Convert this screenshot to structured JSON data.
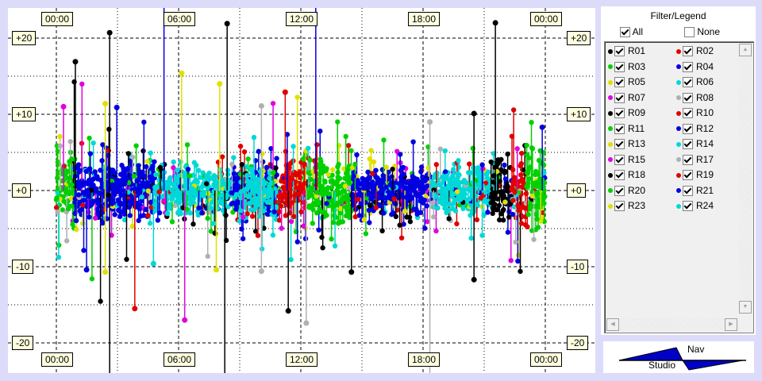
{
  "chart_data": {
    "type": "scatter",
    "subtype": "stem",
    "x_ticks": [
      "00:00",
      "06:00",
      "12:00",
      "18:00",
      "00:00"
    ],
    "y_ticks": [
      "+20",
      "+10",
      "+0",
      "-10",
      "-20"
    ],
    "xlim_hours": [
      0,
      24
    ],
    "ylim": [
      -25,
      25
    ],
    "grid": true,
    "legend_placement": "right",
    "series_colors": {
      "R01": "#000000",
      "R02": "#e00000",
      "R03": "#00d000",
      "R04": "#0000e0",
      "R05": "#e0e000",
      "R06": "#00d8d8",
      "R07": "#e000e0",
      "R08": "#b0b0b0",
      "R09": "#000000",
      "R10": "#e00000",
      "R11": "#00d000",
      "R12": "#0000e0",
      "R13": "#e0e000",
      "R14": "#00d8d8",
      "R15": "#e000e0",
      "R17": "#b0b0b0",
      "R18": "#000000",
      "R19": "#e00000",
      "R20": "#00d000",
      "R21": "#0000e0",
      "R23": "#e0e000",
      "R24": "#00d8d8"
    },
    "dense_segments": [
      {
        "series": "R03",
        "start": "00:00",
        "end": "00:55",
        "spread": 4
      },
      {
        "series": "R04",
        "start": "00:55",
        "end": "04:50",
        "spread": 3
      },
      {
        "series": "R06",
        "start": "04:50",
        "end": "08:35",
        "spread": 2.5
      },
      {
        "series": "R12",
        "start": "08:35",
        "end": "10:55",
        "spread": 3
      },
      {
        "series": "R14",
        "start": "09:00",
        "end": "10:50",
        "spread": 2.5
      },
      {
        "series": "R10",
        "start": "10:55",
        "end": "12:20",
        "spread": 3
      },
      {
        "series": "R11",
        "start": "12:20",
        "end": "14:30",
        "spread": 3.5
      },
      {
        "series": "R21",
        "start": "14:30",
        "end": "18:25",
        "spread": 2.5
      },
      {
        "series": "R24",
        "start": "18:25",
        "end": "21:20",
        "spread": 2.5
      },
      {
        "series": "R18",
        "start": "21:20",
        "end": "22:20",
        "spread": 3.5
      },
      {
        "series": "R19",
        "start": "22:20",
        "end": "23:05",
        "spread": 4
      },
      {
        "series": "R20",
        "start": "23:05",
        "end": "24:00",
        "spread": 4
      }
    ],
    "spikes": [
      {
        "series": "R01",
        "time": "00:56",
        "value": 16.9
      },
      {
        "series": "R07",
        "time": "00:21",
        "value": 11
      },
      {
        "series": "R05",
        "time": "02:24",
        "value": 11.4
      },
      {
        "series": "R09",
        "time": "02:37",
        "value": 20.7
      },
      {
        "series": "R09",
        "time": "02:37",
        "value": -24
      },
      {
        "series": "R04",
        "time": "02:58",
        "value": 10.9
      },
      {
        "series": "R04",
        "time": "01:29",
        "value": -10.4
      },
      {
        "series": "R05",
        "time": "02:24",
        "value": -10.7
      },
      {
        "series": "R02",
        "time": "03:51",
        "value": -15.5
      },
      {
        "series": "R06",
        "time": "04:46",
        "value": -9.6
      },
      {
        "series": "R04",
        "time": "05:17",
        "value": 24.5
      },
      {
        "series": "R05",
        "time": "06:09",
        "value": 15.4
      },
      {
        "series": "R07",
        "time": "06:18",
        "value": -17
      },
      {
        "series": "R05",
        "time": "08:01",
        "value": 14
      },
      {
        "series": "R13",
        "time": "07:51",
        "value": -10.4
      },
      {
        "series": "R18",
        "time": "08:23",
        "value": 21.9
      },
      {
        "series": "R18",
        "time": "08:16",
        "value": -24
      },
      {
        "series": "R08",
        "time": "10:04",
        "value": 11.1
      },
      {
        "series": "R08",
        "time": "10:04",
        "value": -10.6
      },
      {
        "series": "R02",
        "time": "11:14",
        "value": 12.9
      },
      {
        "series": "R09",
        "time": "11:23",
        "value": -15.8
      },
      {
        "series": "R17",
        "time": "12:16",
        "value": -17.4
      },
      {
        "series": "R12",
        "time": "12:44",
        "value": 24.5
      },
      {
        "series": "R09",
        "time": "14:29",
        "value": -10.7
      },
      {
        "series": "R17",
        "time": "18:20",
        "value": 9
      },
      {
        "series": "R17",
        "time": "18:20",
        "value": -24
      },
      {
        "series": "R18",
        "time": "20:30",
        "value": 10.1
      },
      {
        "series": "R18",
        "time": "20:30",
        "value": -11.7
      },
      {
        "series": "R01",
        "time": "21:33",
        "value": 22
      },
      {
        "series": "R04",
        "time": "23:51",
        "value": 8.3
      }
    ]
  },
  "legend": {
    "title": "Filter/Legend",
    "all_label": "All",
    "all_checked": true,
    "none_label": "None",
    "none_checked": false,
    "items": [
      "R01",
      "R02",
      "R03",
      "R04",
      "R05",
      "R06",
      "R07",
      "R08",
      "R09",
      "R10",
      "R11",
      "R12",
      "R13",
      "R14",
      "R15",
      "R17",
      "R18",
      "R19",
      "R20",
      "R21",
      "R23",
      "R24"
    ]
  },
  "nav": {
    "top_label": "Nav",
    "bottom_label": "Studio",
    "color": "#0000c8"
  }
}
